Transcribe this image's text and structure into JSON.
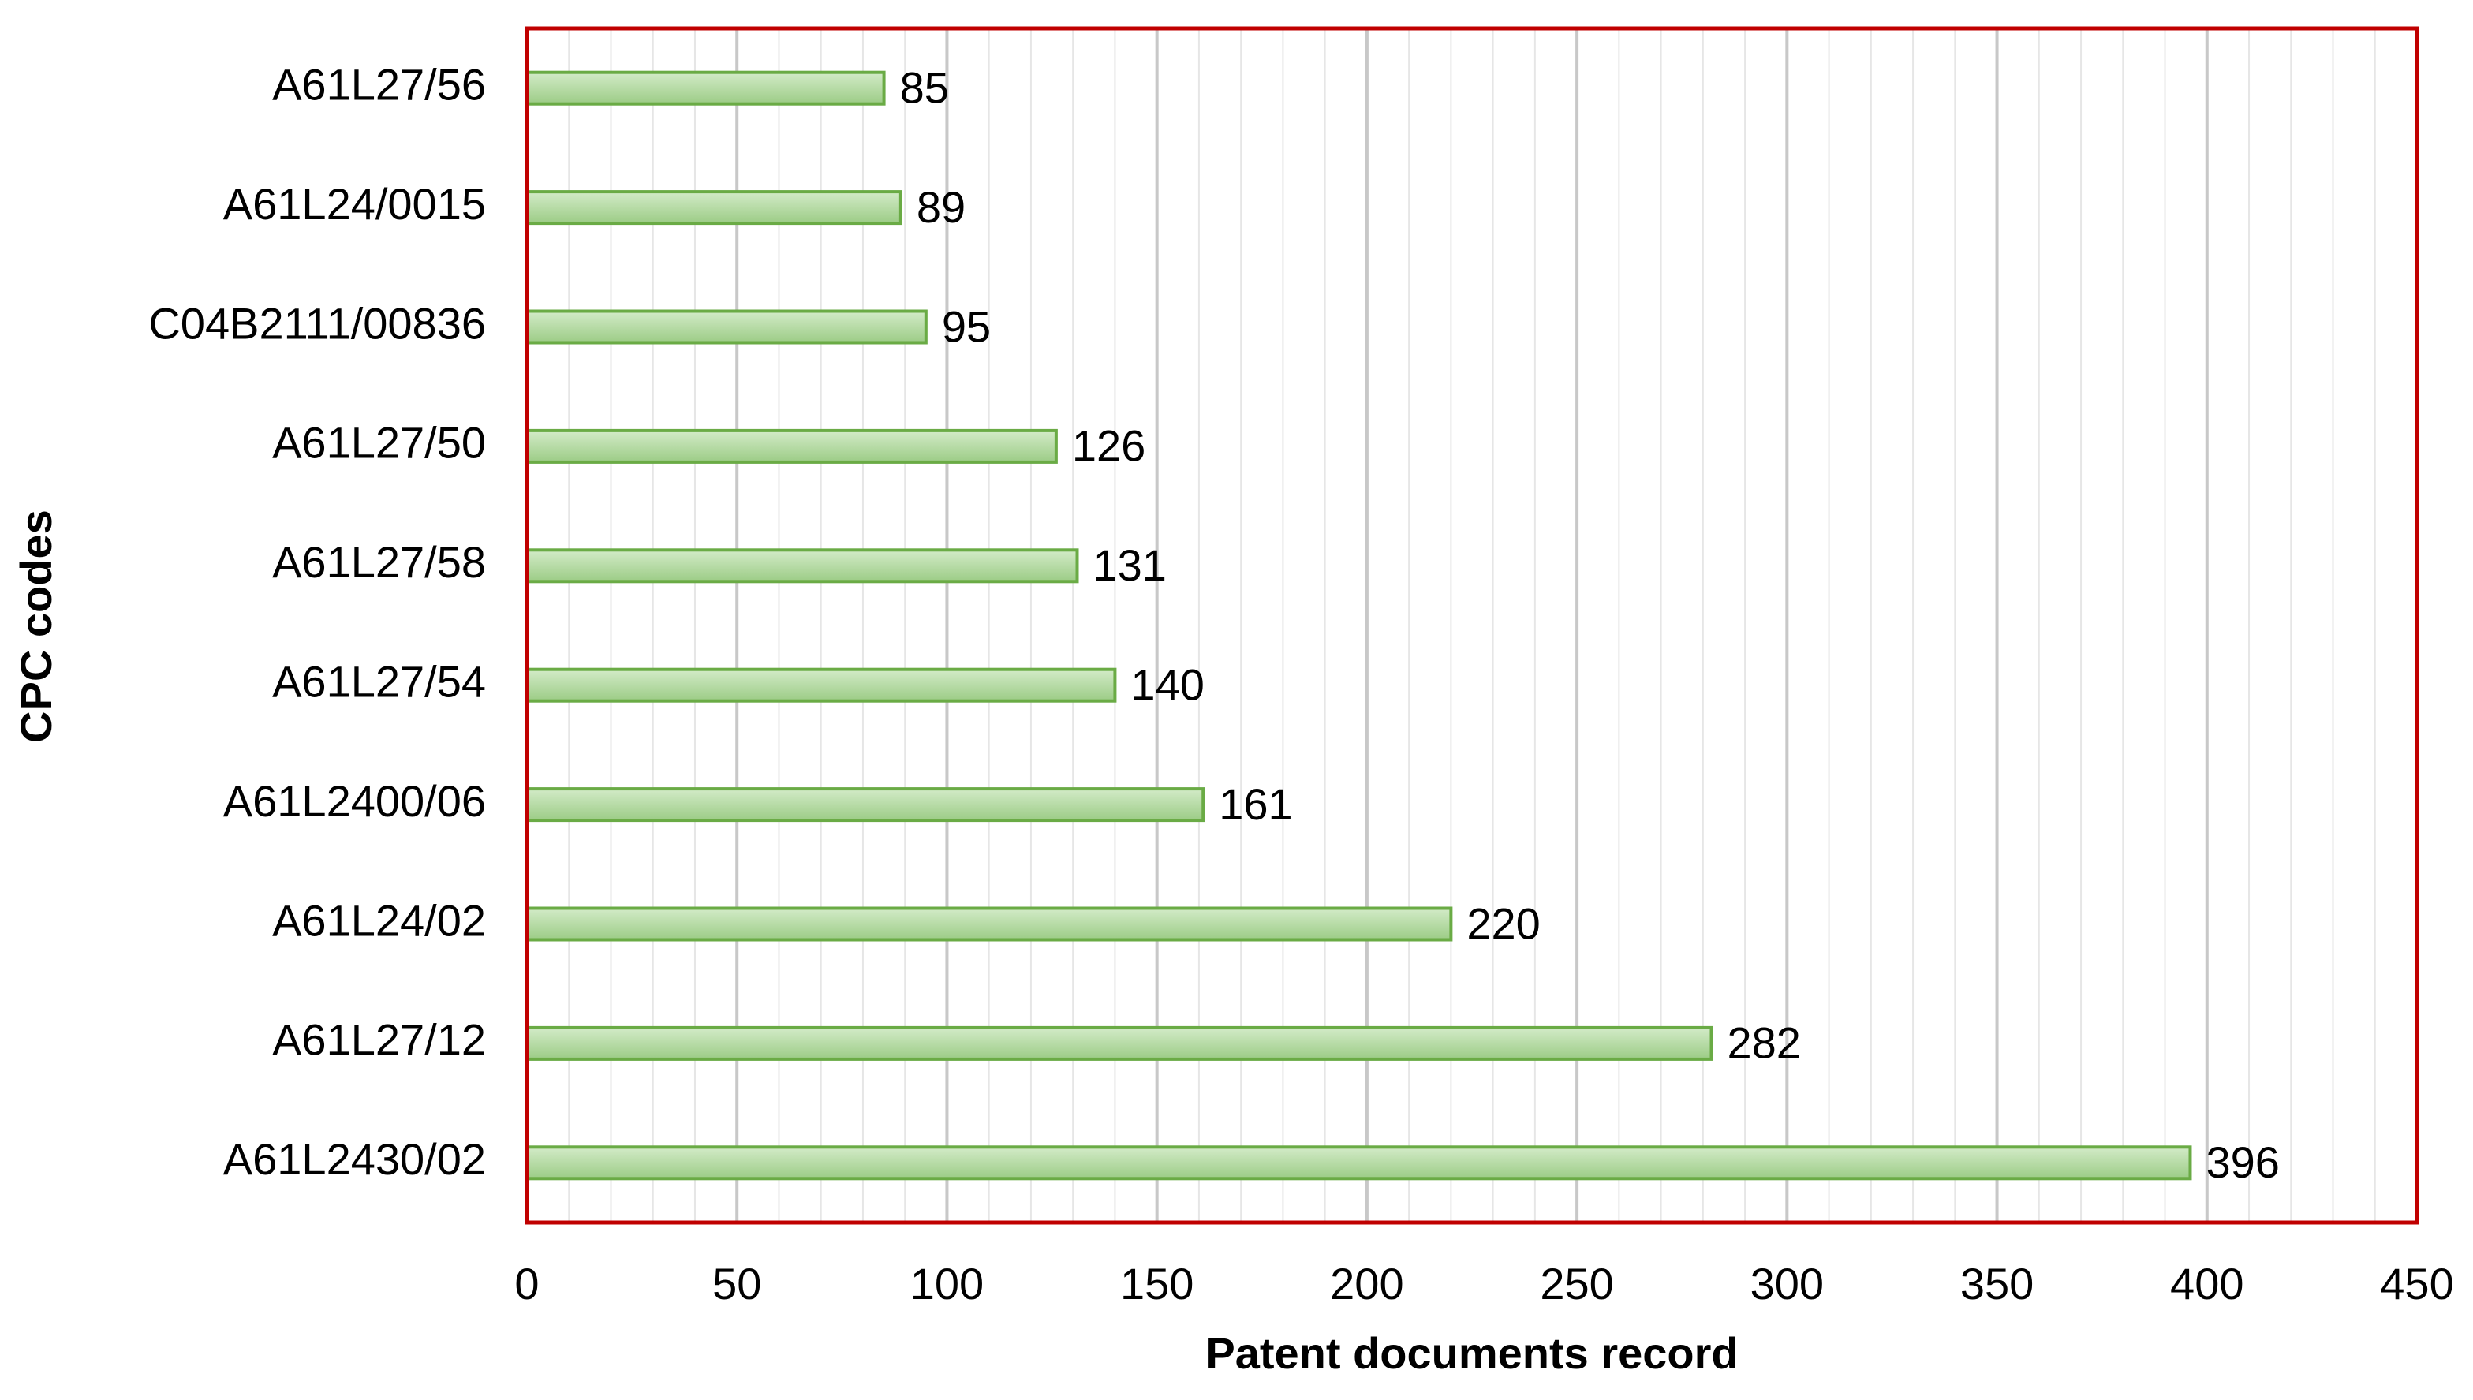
{
  "chart_data": {
    "type": "barh",
    "xlabel": "Patent documents record",
    "ylabel": "CPC codes",
    "categories": [
      "A61L27/56",
      "A61L24/0015",
      "C04B2111/00836",
      "A61L27/50",
      "A61L27/58",
      "A61L27/54",
      "A61L2400/06",
      "A61L24/02",
      "A61L27/12",
      "A61L2430/02"
    ],
    "values": [
      85,
      89,
      95,
      126,
      131,
      140,
      161,
      220,
      282,
      396
    ],
    "color": "#a9d596",
    "edge_color": "#6aab45",
    "frame_color": "#c00000",
    "xlim": [
      0,
      450
    ],
    "xticks": [
      0,
      50,
      100,
      150,
      200,
      250,
      300,
      350,
      400,
      450
    ],
    "xminorticks": [
      10,
      20,
      30,
      40,
      60,
      70,
      80,
      90,
      110,
      120,
      130,
      140,
      160,
      170,
      180,
      190,
      210,
      220,
      230,
      240,
      260,
      270,
      280,
      290,
      310,
      320,
      330,
      340,
      360,
      370,
      380,
      390,
      410,
      420,
      430,
      440
    ],
    "grid": true
  }
}
